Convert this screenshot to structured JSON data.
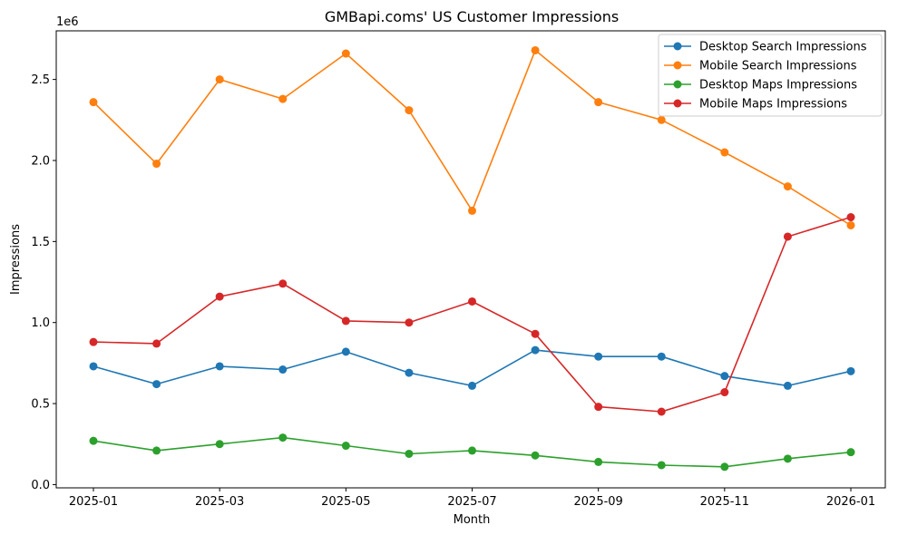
{
  "chart_data": {
    "type": "line",
    "title": "GMBapi.coms' US Customer Impressions",
    "xlabel": "Month",
    "ylabel": "Impressions",
    "offset_label": "1e6",
    "x": [
      "2025-01",
      "2025-02",
      "2025-03",
      "2025-04",
      "2025-05",
      "2025-06",
      "2025-07",
      "2025-08",
      "2025-09",
      "2025-10",
      "2025-11",
      "2025-12",
      "2026-01"
    ],
    "x_tick_labels": [
      "2025-01",
      "2025-03",
      "2025-05",
      "2025-07",
      "2025-09",
      "2025-11",
      "2026-01"
    ],
    "y_ticks": [
      0.0,
      0.5,
      1.0,
      1.5,
      2.0,
      2.5
    ],
    "y_tick_labels": [
      "0.0",
      "0.5",
      "1.0",
      "1.5",
      "2.0",
      "2.5"
    ],
    "ylim": [
      -0.02,
      2.8
    ],
    "y_unit_scale": 1000000,
    "grid": false,
    "legend_position": "top-right",
    "series": [
      {
        "name": "Desktop Search Impressions",
        "color": "#1f77b4",
        "values": [
          0.73,
          0.62,
          0.73,
          0.71,
          0.82,
          0.69,
          0.61,
          0.83,
          0.79,
          0.79,
          0.67,
          0.61,
          0.7
        ]
      },
      {
        "name": "Mobile Search Impressions",
        "color": "#ff7f0e",
        "values": [
          2.36,
          1.98,
          2.5,
          2.38,
          2.66,
          2.31,
          1.69,
          2.68,
          2.36,
          2.25,
          2.05,
          1.84,
          1.6
        ]
      },
      {
        "name": "Desktop Maps Impressions",
        "color": "#2ca02c",
        "values": [
          0.27,
          0.21,
          0.25,
          0.29,
          0.24,
          0.19,
          0.21,
          0.18,
          0.14,
          0.12,
          0.11,
          0.16,
          0.2
        ]
      },
      {
        "name": "Mobile Maps Impressions",
        "color": "#d62728",
        "values": [
          0.88,
          0.87,
          1.16,
          1.24,
          1.01,
          1.0,
          1.13,
          0.93,
          0.48,
          0.45,
          0.57,
          1.53,
          1.65
        ]
      }
    ]
  }
}
